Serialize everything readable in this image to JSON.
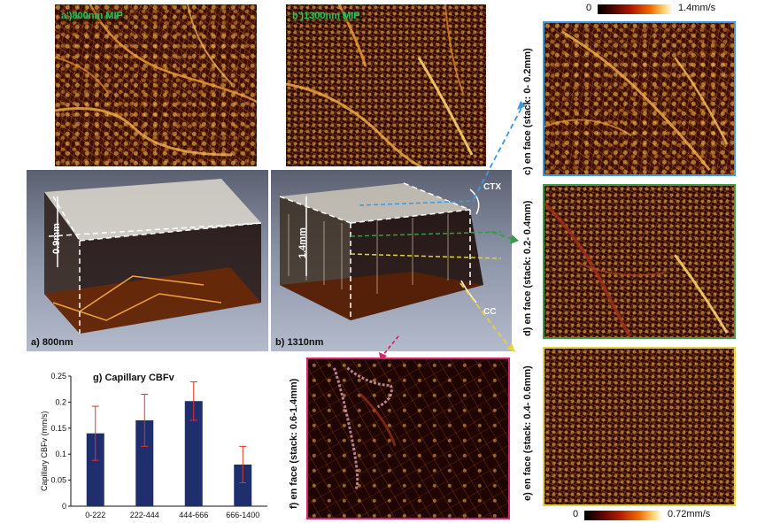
{
  "panels": {
    "a_prime": {
      "label": "a')800nm MIP"
    },
    "b_prime": {
      "label": "b')1300nm MIP"
    },
    "a": {
      "label": "a) 800nm",
      "depth": "0.9mm"
    },
    "b": {
      "label": "b) 1310nm",
      "depth": "1.4mm",
      "ctx": "CTX",
      "cc": "CC"
    },
    "c": {
      "label": "c) en face (stack: 0- 0.2mm)",
      "border": "#3b9ae1"
    },
    "d": {
      "label": "d) en face (stack: 0.2- 0.4mm)",
      "border": "#3a9a4a"
    },
    "e": {
      "label": "e) en face (stack: 0.4- 0.6mm)",
      "border": "#e3d23a"
    },
    "f": {
      "label": "f) en face (stack: 0.6-1.4mm)",
      "border": "#d6246e"
    }
  },
  "colorbar_top": {
    "min": "0",
    "max": "1.4mm/s"
  },
  "colorbar_bottom": {
    "min": "0",
    "max": "0.72mm/s"
  },
  "chart_data": {
    "type": "bar",
    "title": "g) Capillary CBFv",
    "ylabel": "Capillary CBFv (mm/s)",
    "xlabel": "",
    "categories": [
      "0-222",
      "222-444",
      "444-666",
      "666-1400"
    ],
    "values": [
      0.14,
      0.165,
      0.202,
      0.08
    ],
    "errors": [
      0.052,
      0.05,
      0.037,
      0.035
    ],
    "ylim": [
      0,
      0.25
    ],
    "yticks": [
      "0",
      "0.05",
      "0.1",
      "0.15",
      "0.2",
      "0.25"
    ],
    "bar_color": "#1f2f6e",
    "error_color": "#e8312a",
    "grid": false
  }
}
